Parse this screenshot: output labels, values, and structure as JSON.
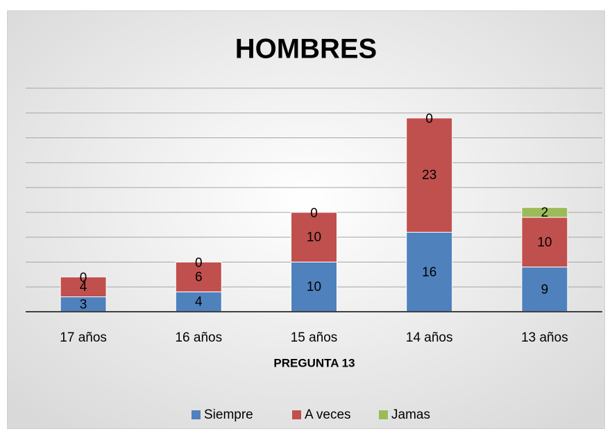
{
  "chart_data": {
    "type": "stacked_bar",
    "title": "HOMBRES",
    "x_label": "PREGUNTA 13",
    "categories": [
      "17 años",
      "16 años",
      "15 años",
      "14 años",
      "13 años"
    ],
    "series": [
      {
        "name": "Siempre",
        "color": "#4f81bd",
        "values": [
          3,
          4,
          10,
          16,
          9
        ]
      },
      {
        "name": "A veces",
        "color": "#c0504d",
        "values": [
          4,
          6,
          10,
          23,
          10
        ]
      },
      {
        "name": "Jamas",
        "color": "#9bbb59",
        "values": [
          0,
          0,
          0,
          0,
          2
        ]
      }
    ],
    "ylim": [
      0,
      45
    ],
    "yticks": [
      0,
      5,
      10,
      15,
      20,
      25,
      30,
      35,
      40,
      45
    ],
    "grid": true,
    "legend": "bottom"
  }
}
